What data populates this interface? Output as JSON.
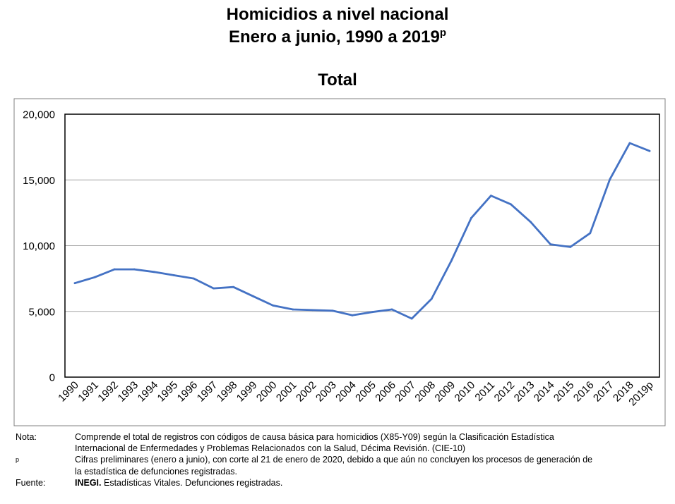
{
  "title": {
    "line1": "Homicidios a nivel nacional",
    "line2": "Enero a junio, 1990 a 2019",
    "line2_sup": "p",
    "subtitle": "Total"
  },
  "chart_data": {
    "type": "line",
    "title": "Total",
    "xlabel": "",
    "ylabel": "",
    "ylim": [
      0,
      20000
    ],
    "grid": true,
    "yticks": [
      0,
      5000,
      10000,
      15000,
      20000
    ],
    "ytick_labels": [
      "0",
      "5,000",
      "10,000",
      "15,000",
      "20,000"
    ],
    "categories": [
      "1990",
      "1991",
      "1992",
      "1993",
      "1994",
      "1995",
      "1996",
      "1997",
      "1998",
      "1999",
      "2000",
      "2001",
      "2002",
      "2003",
      "2004",
      "2005",
      "2006",
      "2007",
      "2008",
      "2009",
      "2010",
      "2011",
      "2012",
      "2013",
      "2014",
      "2015",
      "2016",
      "2017",
      "2018",
      "2019p"
    ],
    "series": [
      {
        "name": "Total",
        "color": "#4472C4",
        "values": [
          7150,
          7600,
          8200,
          8200,
          8000,
          7750,
          7500,
          6750,
          6850,
          6150,
          5450,
          5150,
          5100,
          5050,
          4700,
          4950,
          5150,
          4450,
          5950,
          8850,
          12100,
          13800,
          13150,
          11800,
          10100,
          9900,
          10950,
          15050,
          17800,
          17200
        ]
      }
    ]
  },
  "notes": {
    "nota_label": "Nota:",
    "nota_text_1": "Comprende el total de registros con códigos de causa básica para homicidios (X85-Y09) según la Clasificación Estadística",
    "nota_text_2": "Internacional de Enfermedades y Problemas Relacionados con la Salud, Décima Revisión. (CIE-10)",
    "p_label": "p",
    "p_text_1": "Cifras preliminares (enero a junio), con corte al 21 de enero de 2020, debido a que aún no concluyen los procesos de generación de",
    "p_text_2": "la estadística de defunciones registradas.",
    "fuente_label": "Fuente:",
    "fuente_bold": "INEGI.",
    "fuente_text": " Estadísticas Vitales. Defunciones registradas."
  }
}
